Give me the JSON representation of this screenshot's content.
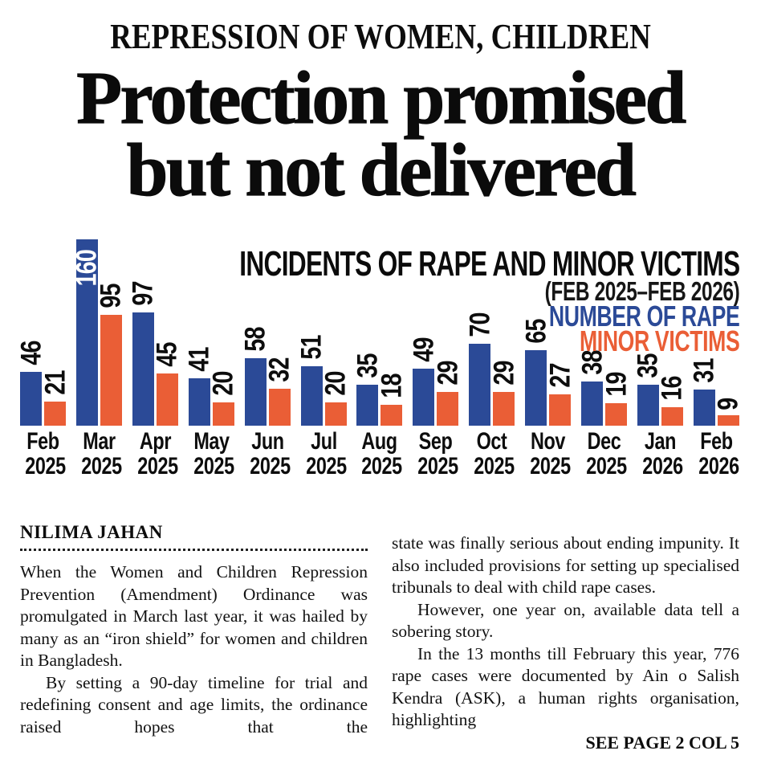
{
  "kicker": "REPRESSION OF WOMEN, CHILDREN",
  "headline": {
    "line1": "Protection promised",
    "line2": "but not delivered"
  },
  "chart": {
    "title": "INCIDENTS OF RAPE AND MINOR VICTIMS",
    "subtitle": "(FEB 2025–FEB 2026)",
    "legend": [
      {
        "label": "NUMBER OF RAPE",
        "color": "#2b4a97"
      },
      {
        "label": "MINOR VICTIMS",
        "color": "#ea5e36"
      }
    ]
  },
  "chart_data": {
    "type": "bar",
    "title": "INCIDENTS OF RAPE AND MINOR VICTIMS",
    "subtitle": "(FEB 2025–FEB 2026)",
    "categories": [
      {
        "month": "Feb",
        "year": "2025"
      },
      {
        "month": "Mar",
        "year": "2025"
      },
      {
        "month": "Apr",
        "year": "2025"
      },
      {
        "month": "May",
        "year": "2025"
      },
      {
        "month": "Jun",
        "year": "2025"
      },
      {
        "month": "Jul",
        "year": "2025"
      },
      {
        "month": "Aug",
        "year": "2025"
      },
      {
        "month": "Sep",
        "year": "2025"
      },
      {
        "month": "Oct",
        "year": "2025"
      },
      {
        "month": "Nov",
        "year": "2025"
      },
      {
        "month": "Dec",
        "year": "2025"
      },
      {
        "month": "Jan",
        "year": "2026"
      },
      {
        "month": "Feb",
        "year": "2026"
      }
    ],
    "series": [
      {
        "name": "NUMBER OF RAPE",
        "color": "#2b4a97",
        "values": [
          46,
          160,
          97,
          41,
          58,
          51,
          35,
          49,
          70,
          65,
          38,
          35,
          31
        ]
      },
      {
        "name": "MINOR VICTIMS",
        "color": "#ea5e36",
        "values": [
          21,
          95,
          45,
          20,
          32,
          20,
          18,
          29,
          29,
          27,
          19,
          16,
          9
        ]
      }
    ],
    "ylim": [
      0,
      160
    ],
    "grid": false,
    "legend_position": "top-right",
    "value_labels": "rotated 90deg above each bar; max bar label shown in white inside bar"
  },
  "article": {
    "byline": "NILIMA JAHAN",
    "left_column": {
      "paragraphs": [
        "When the Women and Children Repression Prevention (Amendment) Ordinance was promulgated in March last year, it was hailed by many as an “iron shield” for women and children in Bangladesh.",
        "By setting a 90-day timeline for trial and redefining consent and age limits, the ordinance raised hopes that the"
      ]
    },
    "right_column": {
      "paragraphs": [
        "state was finally serious about ending impunity. It also included provisions for setting up specialised tribunals to deal with child rape cases.",
        "However, one year on, available data tell a sobering story.",
        "In the 13 months till February this year, 776 rape cases were documented by Ain o Salish Kendra (ASK), a human rights organisation, highlighting"
      ],
      "jump_line": "SEE PAGE 2 COL 5"
    }
  }
}
